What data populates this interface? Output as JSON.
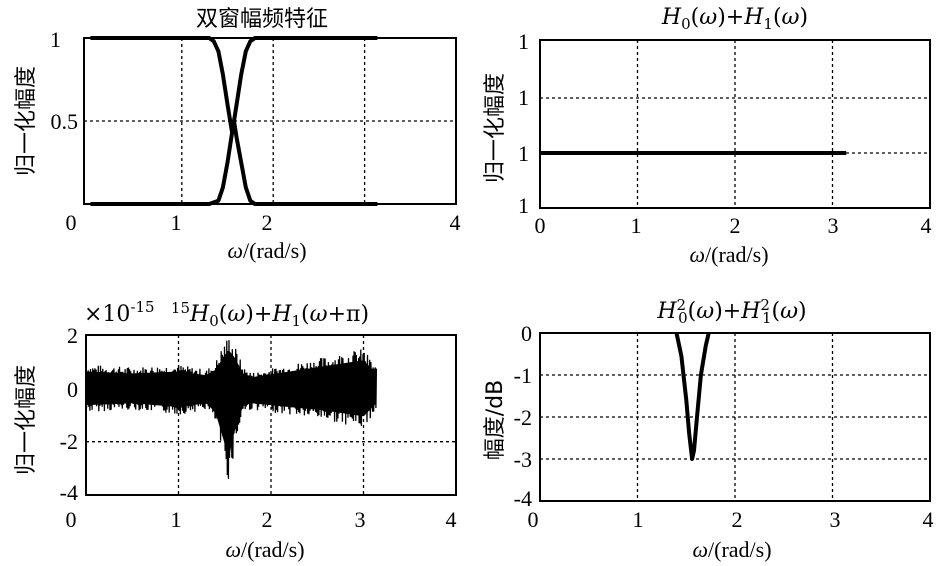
{
  "chart_data": [
    {
      "type": "line",
      "title": "双窗幅频特征",
      "xlabel": "ω/(rad/s)",
      "ylabel": "归一化幅度",
      "xlim": [
        0,
        4
      ],
      "ylim": [
        0,
        1
      ],
      "xticks": [
        "0",
        "1",
        "2",
        "4"
      ],
      "yticks": [
        "0.5",
        "1"
      ],
      "grid": true,
      "series": [
        {
          "x": [
            0,
            1.0,
            1.3,
            1.4,
            1.45,
            1.5,
            1.55,
            1.571,
            1.6,
            1.65,
            1.7,
            1.75,
            1.8,
            1.9,
            3.14
          ],
          "values": [
            0,
            0,
            0,
            0.02,
            0.1,
            0.25,
            0.43,
            0.5,
            0.6,
            0.78,
            0.92,
            0.98,
            1.0,
            1.0,
            1.0
          ]
        },
        {
          "x": [
            0,
            1.3,
            1.35,
            1.4,
            1.45,
            1.5,
            1.55,
            1.571,
            1.6,
            1.65,
            1.7,
            1.75,
            1.8,
            2.0,
            3.14
          ],
          "values": [
            1.0,
            1.0,
            0.98,
            0.92,
            0.78,
            0.6,
            0.43,
            0.5,
            0.4,
            0.25,
            0.1,
            0.02,
            0,
            0,
            0
          ]
        }
      ]
    },
    {
      "type": "line",
      "title": "H0(ω)+H1(ω)",
      "xlabel": "ω/(rad/s)",
      "ylabel": "归一化幅度",
      "xlim": [
        0,
        4
      ],
      "xticks": [
        "0",
        "1",
        "2",
        "3",
        "4"
      ],
      "yticks": [
        "1",
        "1",
        "1",
        "1"
      ],
      "grid": true,
      "series": [
        {
          "x": [
            0,
            3.14
          ],
          "values": [
            1,
            1
          ]
        }
      ]
    },
    {
      "type": "line",
      "title": "×10 ¹⁵H0(ω)+H1(ω+π)",
      "scale_label": "×10",
      "scale_exponent": "-15",
      "xlabel": "ω/(rad/s)",
      "ylabel": "归一化幅度",
      "xlim": [
        0,
        4
      ],
      "ylim": [
        -4,
        2
      ],
      "xticks": [
        "0",
        "1",
        "2",
        "3",
        "4"
      ],
      "yticks": [
        "-4",
        "-2",
        "0",
        "2"
      ],
      "grid": true,
      "series": [
        {
          "x": [
            0,
            0.5,
            1.0,
            1.3,
            1.4,
            1.5,
            1.55,
            1.6,
            1.7,
            1.8,
            2.2,
            2.6,
            3.0,
            3.14
          ],
          "envelope_upper": [
            0.9,
            0.8,
            0.9,
            0.7,
            1.0,
            1.8,
            2.0,
            1.7,
            0.8,
            0.6,
            0.9,
            1.2,
            1.5,
            0.8
          ],
          "envelope_lower": [
            -0.9,
            -0.8,
            -1.0,
            -0.8,
            -1.3,
            -3.0,
            -3.6,
            -2.4,
            -0.9,
            -0.8,
            -1.0,
            -1.2,
            -1.5,
            -0.8
          ]
        }
      ]
    },
    {
      "type": "line",
      "title": "H0²(ω)+H1²(ω)",
      "xlabel": "ω/(rad/s)",
      "ylabel": "幅度/dB",
      "xlim": [
        0,
        4
      ],
      "ylim": [
        -4,
        0
      ],
      "xticks": [
        "0",
        "1",
        "2",
        "3",
        "4"
      ],
      "yticks": [
        "0",
        "-1",
        "-2",
        "-3",
        "-4"
      ],
      "grid": true,
      "series": [
        {
          "x": [
            0,
            1.4,
            1.45,
            1.5,
            1.53,
            1.56,
            1.58,
            1.61,
            1.65,
            1.7,
            1.73,
            3.14
          ],
          "values": [
            0,
            0,
            -0.55,
            -1.6,
            -2.4,
            -3.0,
            -2.8,
            -2.0,
            -1.0,
            -0.3,
            0,
            0
          ]
        }
      ]
    }
  ]
}
